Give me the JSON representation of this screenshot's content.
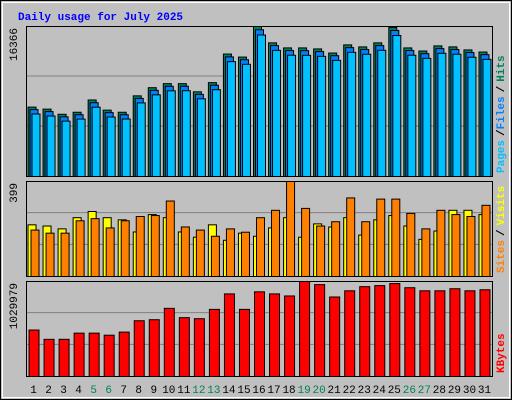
{
  "chart_data": [
    {
      "type": "bar",
      "title": "Daily usage for July 2025",
      "ylim": [
        0,
        16366
      ],
      "yticks": [
        16366
      ],
      "legend_separator": "/",
      "series": [
        {
          "name": "Hits",
          "color": "#00805c",
          "values": [
            7570,
            7350,
            6790,
            7010,
            8350,
            7240,
            7010,
            8800,
            9690,
            10130,
            10130,
            9240,
            10240,
            13360,
            13030,
            16366,
            14580,
            14030,
            14030,
            13920,
            13470,
            14360,
            14140,
            14580,
            16250,
            14030,
            13690,
            14250,
            14140,
            13810,
            13580
          ]
        },
        {
          "name": "Files",
          "color": "#0080ff",
          "values": [
            7300,
            7080,
            6510,
            6740,
            8050,
            6970,
            6740,
            8520,
            9400,
            9840,
            9850,
            8960,
            9960,
            13050,
            12740,
            16010,
            14280,
            13740,
            13730,
            13630,
            13180,
            14060,
            13850,
            14280,
            15930,
            13740,
            13400,
            13950,
            13850,
            13520,
            13290
          ]
        },
        {
          "name": "Pages",
          "color": "#00c0ff",
          "values": [
            6820,
            6600,
            6040,
            6260,
            7560,
            6490,
            6270,
            8030,
            8910,
            9350,
            9360,
            8480,
            9470,
            12530,
            12240,
            15440,
            13760,
            13230,
            13220,
            13110,
            12670,
            13550,
            13340,
            13770,
            15380,
            13230,
            12890,
            13440,
            13340,
            13010,
            12780
          ]
        }
      ]
    },
    {
      "type": "bar",
      "ylim": [
        0,
        399
      ],
      "yticks": [
        399
      ],
      "legend_separator": "/",
      "series": [
        {
          "name": "Visits",
          "color": "#ffff00",
          "values": [
            217,
            212,
            200,
            247,
            273,
            247,
            238,
            187,
            260,
            247,
            187,
            165,
            217,
            152,
            182,
            169,
            204,
            247,
            165,
            221,
            208,
            247,
            174,
            238,
            256,
            212,
            156,
            191,
            278,
            278,
            260
          ]
        },
        {
          "name": "Sites",
          "color": "#ff8000",
          "values": [
            195,
            182,
            182,
            234,
            243,
            204,
            234,
            252,
            256,
            317,
            208,
            195,
            169,
            200,
            186,
            247,
            278,
            399,
            286,
            212,
            230,
            330,
            230,
            325,
            325,
            265,
            200,
            278,
            260,
            252,
            299
          ]
        }
      ]
    },
    {
      "type": "bar",
      "ylim": [
        0,
        1029979
      ],
      "yticks": [
        1029979
      ],
      "categories": [
        "1",
        "2",
        "3",
        "4",
        "5",
        "6",
        "7",
        "8",
        "9",
        "10",
        "11",
        "12",
        "13",
        "14",
        "15",
        "16",
        "17",
        "18",
        "19",
        "20",
        "21",
        "22",
        "23",
        "24",
        "25",
        "26",
        "27",
        "28",
        "29",
        "30",
        "31"
      ],
      "highlight_categories": [
        "5",
        "6",
        "12",
        "13",
        "19",
        "20",
        "26",
        "27"
      ],
      "highlight_color": "#00805c",
      "series": [
        {
          "name": "KBytes",
          "color": "#ff0000",
          "values": [
            503800,
            403000,
            403000,
            470200,
            470200,
            447800,
            481400,
            604600,
            615700,
            738900,
            638100,
            626900,
            727700,
            895600,
            727700,
            918000,
            895600,
            873200,
            1029979,
            996400,
            862000,
            929200,
            974000,
            985200,
            1007600,
            962800,
            929200,
            929200,
            951600,
            929200,
            940400
          ]
        }
      ]
    }
  ]
}
